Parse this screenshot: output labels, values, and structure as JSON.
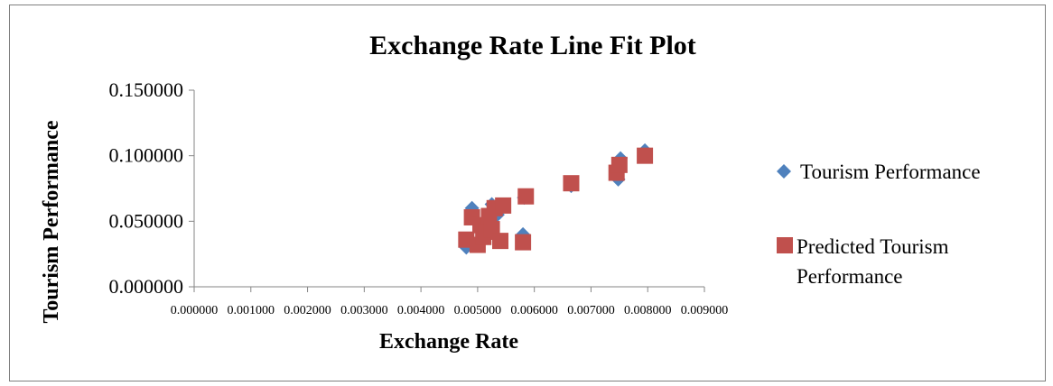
{
  "chart_data": {
    "type": "scatter",
    "title": "Exchange Rate Line Fit  Plot",
    "xlabel": "Exchange Rate",
    "ylabel": "Tourism  Performance",
    "xlim": [
      0,
      0.009
    ],
    "ylim": [
      0,
      0.15
    ],
    "x_ticks": [
      "0.000000",
      "0.001000",
      "0.002000",
      "0.003000",
      "0.004000",
      "0.005000",
      "0.006000",
      "0.007000",
      "0.008000",
      "0.009000"
    ],
    "x_tick_values": [
      0,
      0.001,
      0.002,
      0.003,
      0.004,
      0.005,
      0.006,
      0.007,
      0.008,
      0.009
    ],
    "y_ticks": [
      "0.000000",
      "0.050000",
      "0.100000",
      "0.150000"
    ],
    "y_tick_values": [
      0,
      0.05,
      0.1,
      0.15
    ],
    "grid": false,
    "legend_position": "right",
    "series": [
      {
        "name": "Tourism Performance",
        "marker": "diamond",
        "color": "#4f81bd",
        "x": [
          0.0048,
          0.0049,
          0.005,
          0.00505,
          0.0051,
          0.0052,
          0.00525,
          0.00535,
          0.0054,
          0.0058,
          0.00582,
          0.00665,
          0.00748,
          0.0075,
          0.00752,
          0.00795
        ],
        "y": [
          0.03,
          0.06,
          0.033,
          0.045,
          0.04,
          0.05,
          0.063,
          0.055,
          0.06,
          0.04,
          0.068,
          0.077,
          0.082,
          0.09,
          0.098,
          0.104
        ]
      },
      {
        "name": "Predicted Tourism Performance",
        "marker": "square",
        "color": "#c0504d",
        "x": [
          0.0048,
          0.0049,
          0.005,
          0.00505,
          0.0051,
          0.00515,
          0.0052,
          0.00525,
          0.0053,
          0.0054,
          0.00545,
          0.0058,
          0.00585,
          0.00665,
          0.00745,
          0.0075,
          0.00795
        ],
        "y": [
          0.036,
          0.053,
          0.032,
          0.047,
          0.038,
          0.042,
          0.054,
          0.044,
          0.06,
          0.035,
          0.062,
          0.034,
          0.069,
          0.079,
          0.087,
          0.093,
          0.1
        ]
      }
    ]
  }
}
